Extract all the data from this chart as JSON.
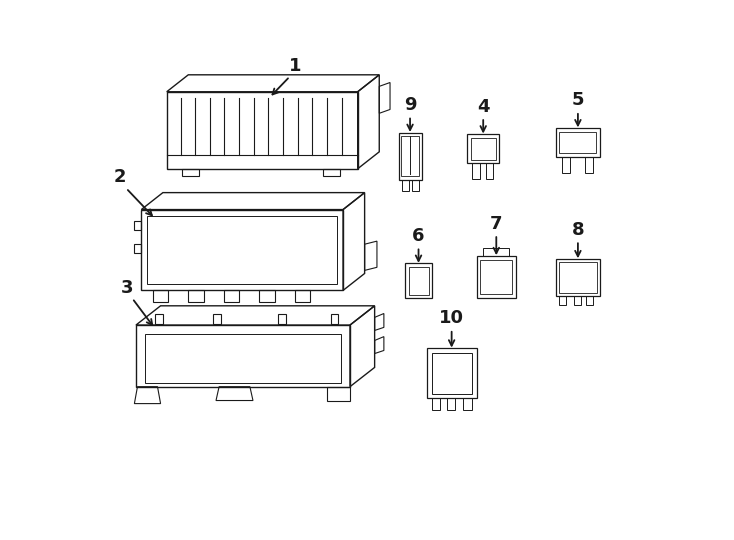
{
  "bg_color": "#ffffff",
  "line_color": "#1a1a1a",
  "label_color": "#000000",
  "components": {
    "1": {
      "label": "1"
    },
    "2": {
      "label": "2"
    },
    "3": {
      "label": "3"
    },
    "4": {
      "label": "4"
    },
    "5": {
      "label": "5"
    },
    "6": {
      "label": "6"
    },
    "7": {
      "label": "7"
    },
    "8": {
      "label": "8"
    },
    "9": {
      "label": "9"
    },
    "10": {
      "label": "10"
    }
  }
}
